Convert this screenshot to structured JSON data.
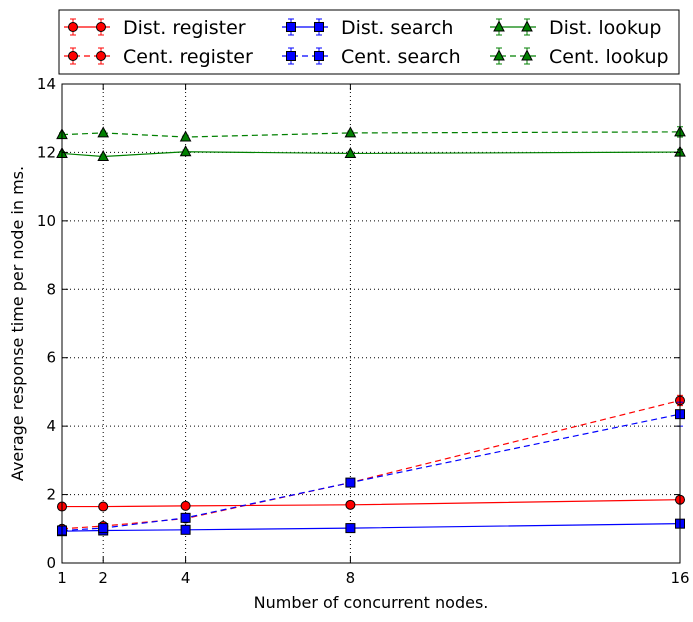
{
  "chart_data": {
    "type": "line",
    "xlabel": "Number of concurrent nodes.",
    "ylabel": "Average response time per node in ms.",
    "x": [
      1,
      2,
      4,
      8,
      16
    ],
    "xticks": [
      "1",
      "2",
      "4",
      "8",
      "16"
    ],
    "xlim": [
      1,
      16
    ],
    "ylim": [
      0,
      14
    ],
    "yticks": [
      "0",
      "2",
      "4",
      "6",
      "8",
      "10",
      "12",
      "14"
    ],
    "grid": true,
    "legend_position": "top, above plot, 3 columns",
    "series": [
      {
        "name": "Dist. register",
        "color": "#ff0000",
        "marker": "circle",
        "linestyle": "solid",
        "values": [
          1.65,
          1.65,
          1.67,
          1.7,
          1.85
        ],
        "errors": [
          0.05,
          0.05,
          0.05,
          0.05,
          0.05
        ]
      },
      {
        "name": "Cent. register",
        "color": "#ff0000",
        "marker": "circle",
        "linestyle": "dashed",
        "values": [
          1.0,
          1.08,
          1.3,
          2.35,
          4.75
        ],
        "errors": [
          0.05,
          0.05,
          0.05,
          0.08,
          0.15
        ]
      },
      {
        "name": "Dist. search",
        "color": "#0000ff",
        "marker": "square",
        "linestyle": "solid",
        "values": [
          0.93,
          0.95,
          0.97,
          1.02,
          1.15
        ],
        "errors": [
          0.03,
          0.03,
          0.03,
          0.03,
          0.05
        ]
      },
      {
        "name": "Cent. search",
        "color": "#0000ff",
        "marker": "square",
        "linestyle": "dashed",
        "values": [
          0.95,
          1.02,
          1.32,
          2.35,
          4.35
        ],
        "errors": [
          0.05,
          0.05,
          0.05,
          0.08,
          0.35
        ]
      },
      {
        "name": "Dist. lookup",
        "color": "#008000",
        "marker": "triangle",
        "linestyle": "solid",
        "values": [
          11.97,
          11.88,
          12.02,
          11.97,
          12.01
        ],
        "errors": [
          0.05,
          0.05,
          0.05,
          0.05,
          0.08
        ]
      },
      {
        "name": "Cent. lookup",
        "color": "#008000",
        "marker": "triangle",
        "linestyle": "dashed",
        "values": [
          12.52,
          12.57,
          12.45,
          12.57,
          12.6
        ],
        "errors": [
          0.05,
          0.05,
          0.05,
          0.05,
          0.15
        ]
      }
    ]
  }
}
